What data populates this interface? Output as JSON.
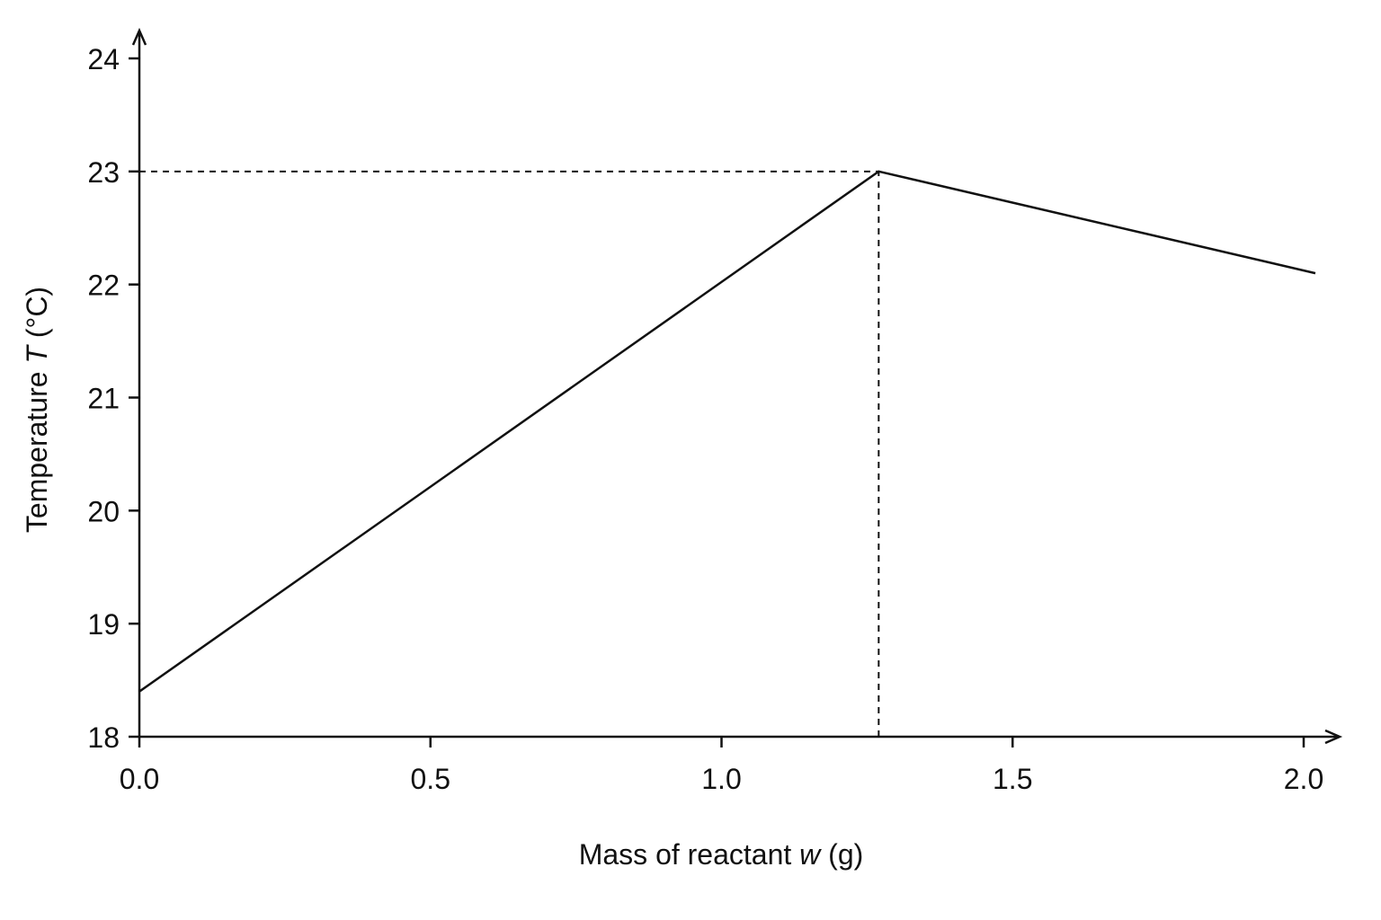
{
  "chart_data": {
    "type": "line",
    "title": "",
    "xlabel": {
      "prefix": "Mass of reactant ",
      "variable": "w",
      "unit": " (g)"
    },
    "ylabel": {
      "prefix": "Temperature ",
      "variable": "T",
      "unit": " (°C)"
    },
    "xlim": [
      0,
      2.0
    ],
    "ylim": [
      18,
      24
    ],
    "x_ticks": [
      {
        "value": 0.0,
        "label": "0.0"
      },
      {
        "value": 0.5,
        "label": "0.5"
      },
      {
        "value": 1.0,
        "label": "1.0"
      },
      {
        "value": 1.5,
        "label": "1.5"
      },
      {
        "value": 2.0,
        "label": "2.0"
      }
    ],
    "y_ticks": [
      {
        "value": 18,
        "label": "18"
      },
      {
        "value": 19,
        "label": "19"
      },
      {
        "value": 20,
        "label": "20"
      },
      {
        "value": 21,
        "label": "21"
      },
      {
        "value": 22,
        "label": "22"
      },
      {
        "value": 23,
        "label": "23"
      },
      {
        "value": 24,
        "label": "24"
      }
    ],
    "series": [
      {
        "points": [
          {
            "x": 0.0,
            "y": 18.4
          },
          {
            "x": 1.27,
            "y": 23.0
          },
          {
            "x": 2.02,
            "y": 22.1
          }
        ]
      }
    ],
    "guides": {
      "horizontal": {
        "y": 23.0,
        "x_from": 0.0,
        "x_to": 1.27
      },
      "vertical": {
        "x": 1.27,
        "y_from": 18.0,
        "y_to": 23.0
      }
    },
    "grid": false,
    "legend": "none",
    "colors": {
      "line": "#111111",
      "background": "#ffffff"
    }
  }
}
